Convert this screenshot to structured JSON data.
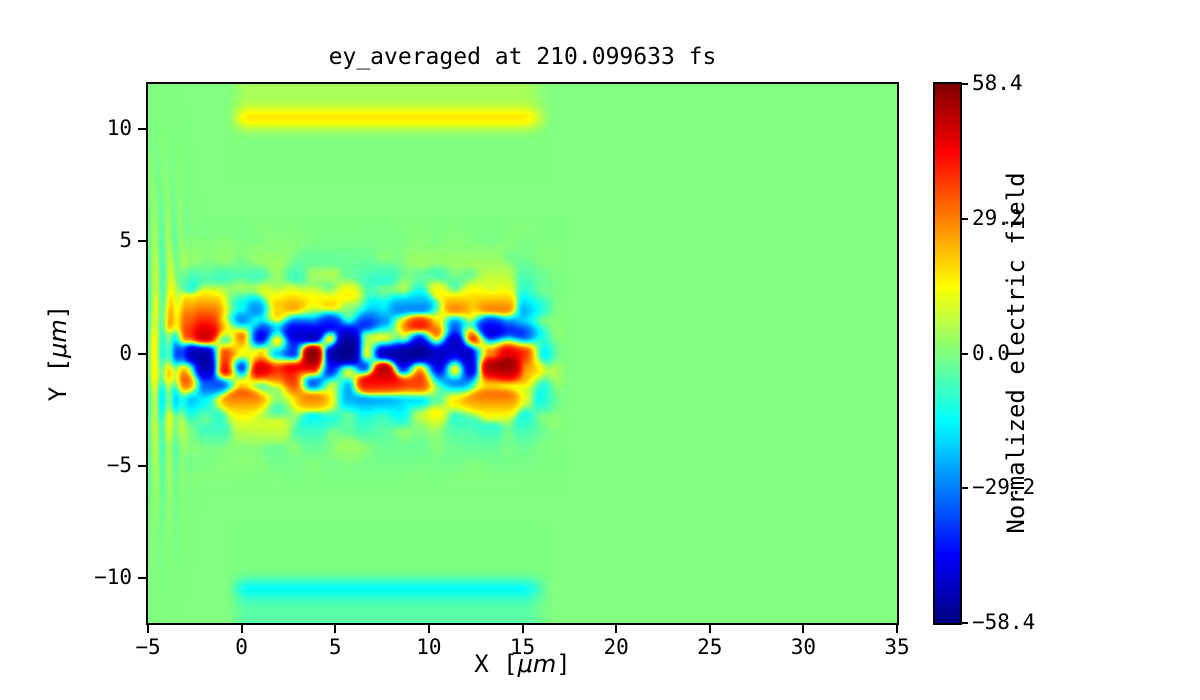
{
  "chart_data": {
    "type": "heatmap",
    "quantity": "ey_averaged",
    "time_fs": 210.099633,
    "title": "ey_averaged at 210.099633 fs",
    "xlabel": "X [μm]",
    "xlabel_parts": {
      "pre": "X [",
      "unit": "μm",
      "post": "]"
    },
    "ylabel": "Y [μm]",
    "ylabel_parts": {
      "pre": "Y [",
      "unit": "μm",
      "post": "]"
    },
    "xlim": [
      -5,
      35
    ],
    "ylim": [
      -12,
      12
    ],
    "x_ticks": [
      -5,
      0,
      5,
      10,
      15,
      20,
      25,
      30,
      35
    ],
    "x_tick_labels": [
      "−5",
      "0",
      "5",
      "10",
      "15",
      "20",
      "25",
      "30",
      "35"
    ],
    "y_ticks": [
      -10,
      -5,
      0,
      5,
      10
    ],
    "y_tick_labels": [
      "−10",
      "−5",
      "0",
      "5",
      "10"
    ],
    "grid": false,
    "colorbar": {
      "label": "Normalized electric field",
      "colormap": "jet",
      "vmin": -58.4,
      "vmax": 58.4,
      "ticks": [
        58.4,
        29.2,
        0.0,
        -29.2,
        -58.4
      ],
      "tick_labels": [
        "58.4",
        "29.2",
        "0.0",
        "−29.2",
        "−58.4"
      ]
    },
    "field_features": {
      "background_value": 0.0,
      "pulse": {
        "description": "turbulent laser pulse of alternating positive (red/yellow) and negative (blue) blobs centered near y=0",
        "x_range": [
          -5,
          17.5
        ],
        "y_range": [
          -3.5,
          3
        ],
        "peak_amplitude": 58
      },
      "top_band": {
        "y_center": 10.45,
        "x_range": [
          -1,
          16
        ],
        "value": 13
      },
      "bottom_band": {
        "y_center": -10.45,
        "x_range": [
          -1,
          16
        ],
        "value": -10
      },
      "left_striations": {
        "x_range": [
          -5,
          -2.5
        ],
        "y_range": [
          -7,
          7
        ],
        "amplitude": 12
      }
    }
  }
}
